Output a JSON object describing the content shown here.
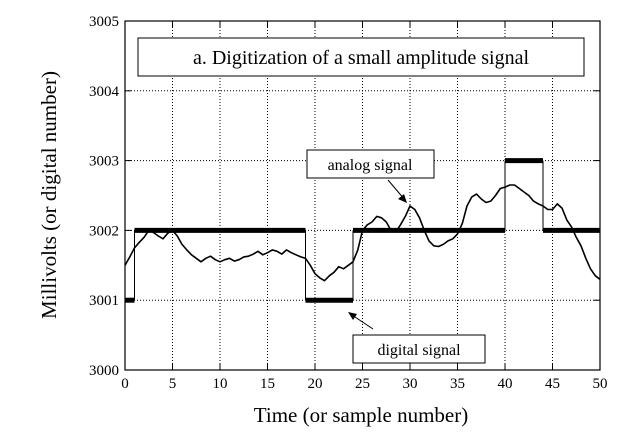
{
  "chart_data": {
    "type": "line",
    "title": "a.  Digitization of a small amplitude signal",
    "xlabel": "Time (or sample number)",
    "ylabel": "Millivolts (or digital number)",
    "xlim": [
      0,
      50
    ],
    "ylim": [
      3000,
      3005
    ],
    "xticks": [
      0,
      5,
      10,
      15,
      20,
      25,
      30,
      35,
      40,
      45,
      50
    ],
    "yticks": [
      3000,
      3001,
      3002,
      3003,
      3004,
      3005
    ],
    "grid": true,
    "annotations": [
      {
        "text": "analog signal",
        "series": "analog"
      },
      {
        "text": "digital signal",
        "series": "digital"
      }
    ],
    "series": [
      {
        "name": "analog",
        "style": "thin-line",
        "x": [
          0,
          0.5,
          1,
          1.5,
          2,
          2.5,
          3,
          3.5,
          4,
          4.5,
          5,
          5.5,
          6,
          6.5,
          7,
          7.5,
          8,
          8.5,
          9,
          9.5,
          10,
          10.5,
          11,
          11.5,
          12,
          12.5,
          13,
          13.5,
          14,
          14.5,
          15,
          15.5,
          16,
          16.5,
          17,
          17.5,
          18,
          18.5,
          19,
          19.5,
          20,
          20.5,
          21,
          21.5,
          22,
          22.5,
          23,
          23.5,
          24,
          24.5,
          25,
          25.5,
          26,
          26.5,
          27,
          27.5,
          28,
          28.5,
          29,
          29.5,
          30,
          30.5,
          31,
          31.5,
          32,
          32.5,
          33,
          33.5,
          34,
          34.5,
          35,
          35.5,
          36,
          36.5,
          37,
          37.5,
          38,
          38.5,
          39,
          39.5,
          40,
          40.5,
          41,
          41.5,
          42,
          42.5,
          43,
          43.5,
          44,
          44.5,
          45,
          45.5,
          46,
          46.5,
          47,
          47.5,
          48,
          48.5,
          49,
          49.5,
          50
        ],
        "y": [
          3001.5,
          3001.62,
          3001.75,
          3001.83,
          3001.9,
          3002.0,
          3001.97,
          3001.92,
          3001.88,
          3001.96,
          3002.0,
          3001.92,
          3001.8,
          3001.72,
          3001.65,
          3001.6,
          3001.55,
          3001.6,
          3001.63,
          3001.58,
          3001.55,
          3001.58,
          3001.6,
          3001.56,
          3001.58,
          3001.62,
          3001.63,
          3001.66,
          3001.7,
          3001.65,
          3001.68,
          3001.72,
          3001.7,
          3001.66,
          3001.72,
          3001.68,
          3001.65,
          3001.62,
          3001.6,
          3001.5,
          3001.38,
          3001.32,
          3001.28,
          3001.35,
          3001.4,
          3001.48,
          3001.45,
          3001.5,
          3001.55,
          3001.72,
          3002.0,
          3002.08,
          3002.12,
          3002.2,
          3002.18,
          3002.12,
          3002.0,
          3001.98,
          3002.08,
          3002.2,
          3002.35,
          3002.3,
          3002.18,
          3002.0,
          3001.85,
          3001.78,
          3001.77,
          3001.8,
          3001.85,
          3001.88,
          3001.95,
          3002.1,
          3002.35,
          3002.48,
          3002.52,
          3002.45,
          3002.4,
          3002.42,
          3002.5,
          3002.6,
          3002.62,
          3002.65,
          3002.65,
          3002.6,
          3002.55,
          3002.5,
          3002.42,
          3002.38,
          3002.35,
          3002.3,
          3002.3,
          3002.38,
          3002.32,
          3002.15,
          3002.05,
          3001.9,
          3001.78,
          3001.6,
          3001.45,
          3001.35,
          3001.3
        ]
      },
      {
        "name": "digital",
        "style": "thick-segments",
        "segments": [
          {
            "x0": 0,
            "x1": 1,
            "y": 3001
          },
          {
            "x0": 1,
            "x1": 19,
            "y": 3002
          },
          {
            "x0": 19,
            "x1": 24,
            "y": 3001
          },
          {
            "x0": 24,
            "x1": 40,
            "y": 3002
          },
          {
            "x0": 40,
            "x1": 44,
            "y": 3003
          },
          {
            "x0": 44,
            "x1": 50,
            "y": 3002
          }
        ]
      }
    ]
  }
}
